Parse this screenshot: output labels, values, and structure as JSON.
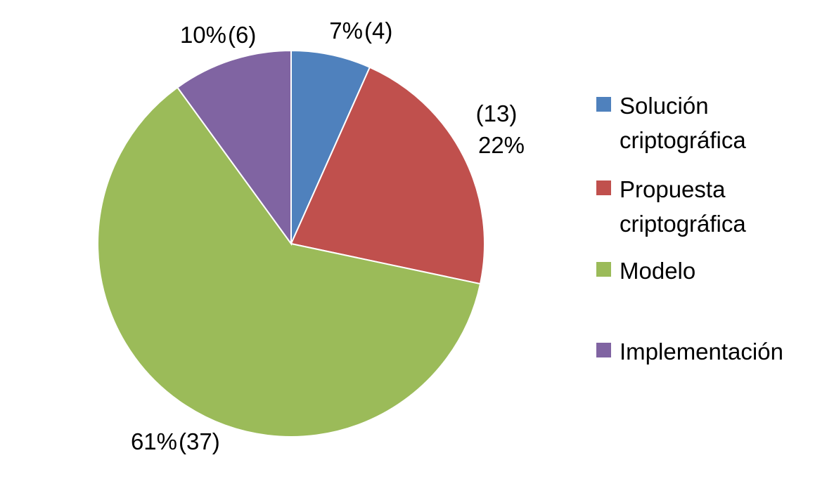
{
  "chart_data": {
    "type": "pie",
    "title": "",
    "slices": [
      {
        "name": "Solución\ncriptográfica",
        "count": 4,
        "percent_label": "7%",
        "count_label": "(4)",
        "color": "#4F81BD"
      },
      {
        "name": "Propuesta\ncriptográfica",
        "count": 13,
        "percent_label": "22%",
        "count_label": "(13)",
        "color": "#C0504D"
      },
      {
        "name": "Modelo",
        "count": 37,
        "percent_label": "61%",
        "count_label": "(37)",
        "color": "#9BBB59"
      },
      {
        "name": "Implementación",
        "count": 6,
        "percent_label": "10%",
        "count_label": "(6)",
        "color": "#8064A2"
      }
    ],
    "start_angle_deg": 0,
    "direction": "clockwise",
    "legend_position": "right"
  }
}
